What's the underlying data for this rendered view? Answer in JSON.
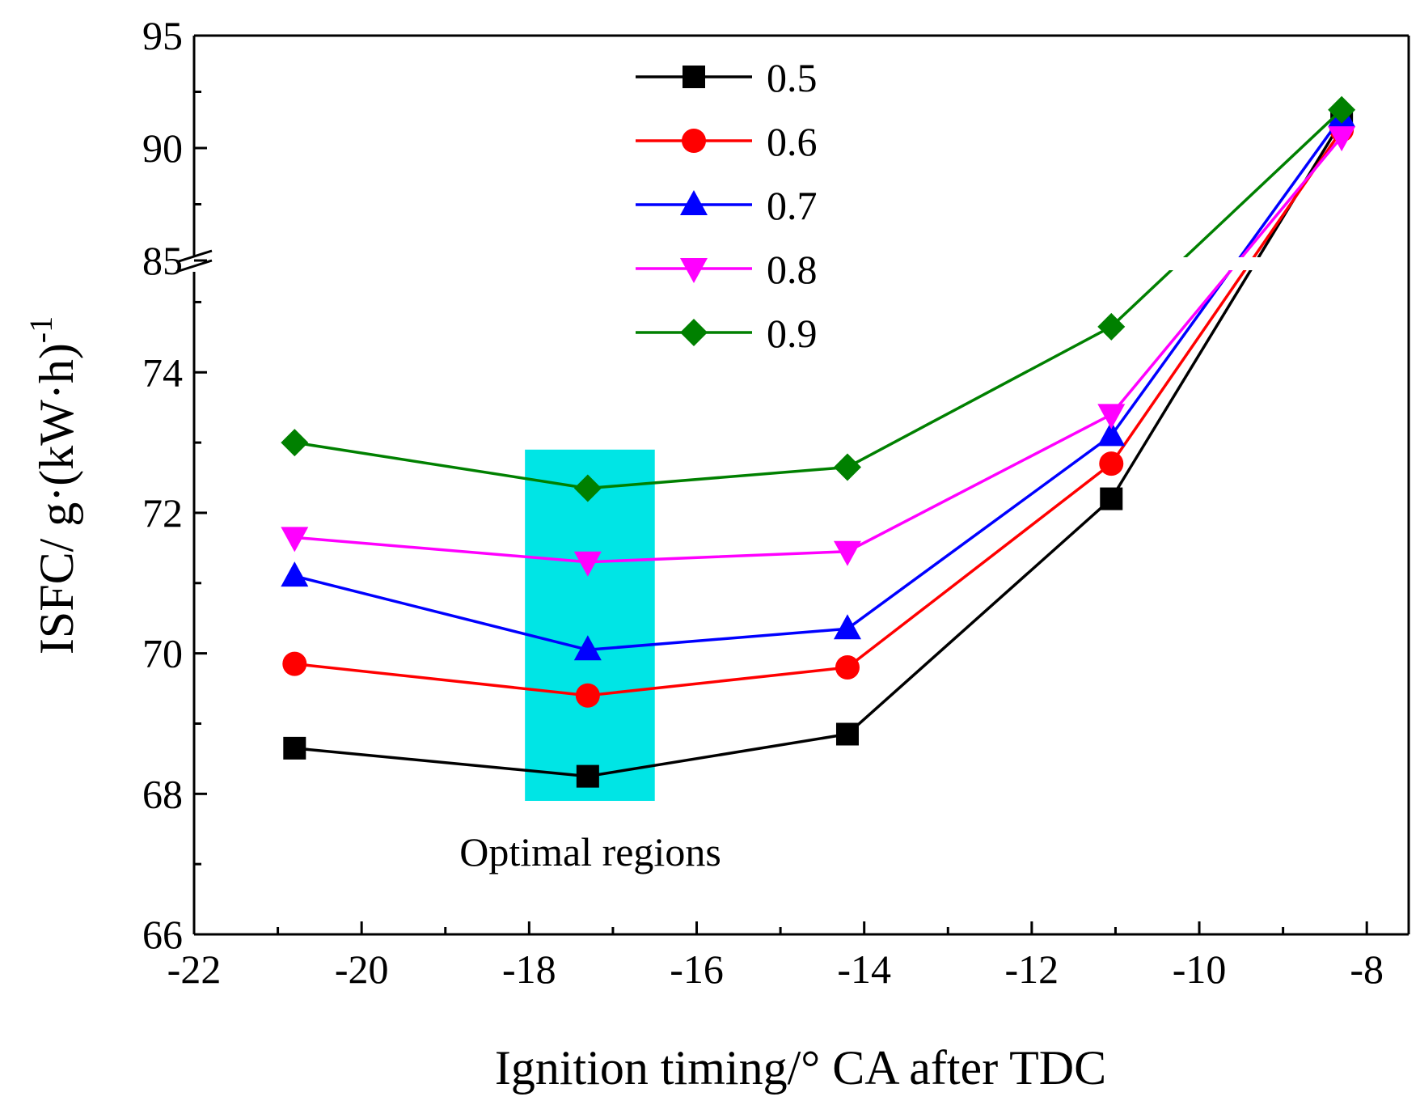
{
  "chart_data": {
    "type": "line",
    "title": "",
    "xlabel": "Ignition timing/° CA after TDC",
    "ylabel": "ISFC/ g·(kW·h)",
    "ylabel_superscript": "-1",
    "xlim": [
      -22,
      -7.5
    ],
    "ylim_lower": [
      66,
      75.5
    ],
    "ylim_upper": [
      85,
      95
    ],
    "axis_break_at": 75.5,
    "x": [
      -20.8,
      -17.3,
      -14.2,
      -11.05,
      -8.3
    ],
    "x_ticks": [
      {
        "value": -22,
        "label": "-22"
      },
      {
        "value": -20,
        "label": "-20"
      },
      {
        "value": -18,
        "label": "-18"
      },
      {
        "value": -16,
        "label": "-16"
      },
      {
        "value": -14,
        "label": "-14"
      },
      {
        "value": -12,
        "label": "-12"
      },
      {
        "value": -10,
        "label": "-10"
      },
      {
        "value": -8,
        "label": "-8"
      }
    ],
    "y_ticks_lower": [
      {
        "value": 66,
        "label": "66"
      },
      {
        "value": 68,
        "label": "68"
      },
      {
        "value": 70,
        "label": "70"
      },
      {
        "value": 72,
        "label": "72"
      },
      {
        "value": 74,
        "label": "74"
      }
    ],
    "y_ticks_upper": [
      {
        "value": 85,
        "label": "85"
      },
      {
        "value": 90,
        "label": "90"
      },
      {
        "value": 95,
        "label": "95"
      }
    ],
    "series": [
      {
        "name": "0.5",
        "color": "#000000",
        "marker": "square",
        "values": [
          68.65,
          68.25,
          68.85,
          72.2,
          91.2
        ]
      },
      {
        "name": "0.6",
        "color": "#ff0000",
        "marker": "circle",
        "values": [
          69.85,
          69.4,
          69.8,
          72.7,
          90.8
        ]
      },
      {
        "name": "0.7",
        "color": "#0000ff",
        "marker": "triangle-up",
        "values": [
          71.1,
          70.05,
          70.35,
          73.1,
          91.4
        ]
      },
      {
        "name": "0.8",
        "color": "#ff00ff",
        "marker": "triangle-down",
        "values": [
          71.65,
          71.3,
          71.45,
          73.4,
          90.5
        ]
      },
      {
        "name": "0.9",
        "color": "#008000",
        "marker": "diamond",
        "values": [
          73.0,
          72.35,
          72.65,
          74.65,
          91.7
        ]
      }
    ],
    "highlight_region": {
      "x_range": [
        -18.05,
        -16.5
      ],
      "y_range": [
        67.9,
        72.9
      ],
      "color": "#00e5e5"
    },
    "annotation": "Optimal regions",
    "legend_position": "top-center"
  }
}
